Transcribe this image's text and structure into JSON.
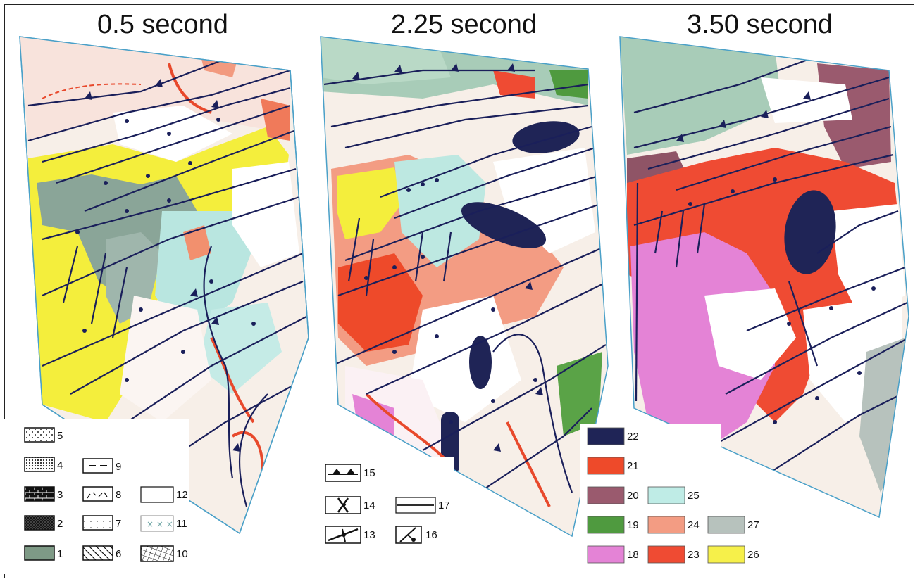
{
  "titles": [
    "0.5 second",
    "2.25 second",
    "3.50 second"
  ],
  "colors": {
    "dark_navy": "#1f2456",
    "red": "#e8492c",
    "mauve": "#9a5a6e",
    "green": "#4f9a3f",
    "pink": "#e07ad0",
    "salmon": "#f29a7f",
    "light_cyan": "#b9e6e0",
    "gray_green": "#9db3a8",
    "yellow": "#f3ee3a",
    "fault": "#1a1f5a"
  },
  "legend_left": [
    {
      "num": "5",
      "icon": "sparse-dots-pattern-icon"
    },
    {
      "num": "4",
      "icon": "dense-dots-pattern-icon"
    },
    {
      "num": "9",
      "icon": "dashed-line-icon"
    },
    {
      "num": "3",
      "icon": "brick-pattern-icon"
    },
    {
      "num": "8",
      "icon": "dash-scatter-pattern-icon"
    },
    {
      "num": "12",
      "icon": "blank-box-icon"
    },
    {
      "num": "2",
      "icon": "crosshatch-dense-pattern-icon"
    },
    {
      "num": "7",
      "icon": "fine-dots-pattern-icon"
    },
    {
      "num": "11",
      "icon": "x-marks-pattern-icon"
    },
    {
      "num": "1",
      "icon": "green-fill-box-icon"
    },
    {
      "num": "6",
      "icon": "diagonal-hatch-icon"
    },
    {
      "num": "10",
      "icon": "grid-hatch-icon"
    }
  ],
  "legend_middle": [
    {
      "num": "15",
      "icon": "thrust-triangle-line-icon"
    },
    {
      "num": "14",
      "icon": "anticline-symbol-icon"
    },
    {
      "num": "17",
      "icon": "solid-line-icon"
    },
    {
      "num": "13",
      "icon": "syncline-symbol-icon"
    },
    {
      "num": "16",
      "icon": "normal-fault-ball-icon"
    }
  ],
  "legend_right": [
    {
      "num": "22",
      "color": "#1f2456"
    },
    {
      "num": "21",
      "color": "#ee4a2a"
    },
    {
      "num": "20",
      "color": "#9a5a6e"
    },
    {
      "num": "25",
      "color": "#bfece6"
    },
    {
      "num": "19",
      "color": "#4f9a3f"
    },
    {
      "num": "24",
      "color": "#f39c83"
    },
    {
      "num": "27",
      "color": "#b7c2bd"
    },
    {
      "num": "18",
      "color": "#e483d6"
    },
    {
      "num": "23",
      "color": "#ef4b33"
    },
    {
      "num": "26",
      "color": "#f6f04a"
    }
  ]
}
